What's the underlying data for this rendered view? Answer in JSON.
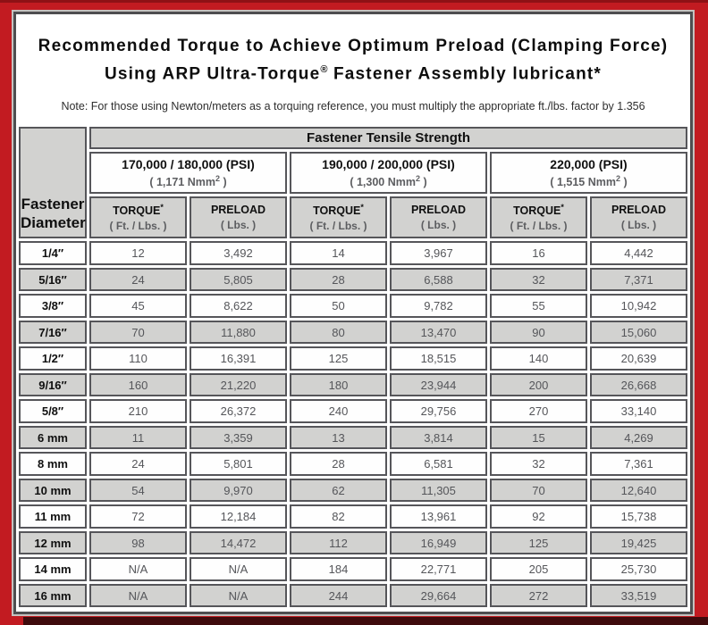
{
  "colors": {
    "frame_red": "#c21b21",
    "bottom_shadow": "#3f0b0d",
    "panel_border": "#4e4e50",
    "cell_border": "#56565a",
    "cell_gray": "#d2d2d0",
    "cell_white": "#fefefe",
    "muted_text": "#5c5d60"
  },
  "title": {
    "line1": "Recommended Torque to Achieve Optimum Preload (Clamping Force)",
    "line2_pre": "Using ARP Ultra-Torque",
    "line2_sup": "®",
    "line2_post": " Fastener Assembly lubricant*"
  },
  "note": "Note: For those using Newton/meters as a torquing reference, you must multiply the appropriate ft./lbs. factor by 1.356",
  "table": {
    "corner_line1": "Fastener",
    "corner_line2": "Diameter",
    "tensile_header": "Fastener Tensile Strength",
    "groups": [
      {
        "psi": "170,000 / 180,000 (PSI)",
        "nmm_pre": "( 1,171 Nmm",
        "nmm_sup": "2",
        "nmm_post": " )"
      },
      {
        "psi": "190,000 / 200,000 (PSI)",
        "nmm_pre": "( 1,300 Nmm",
        "nmm_sup": "2",
        "nmm_post": " )"
      },
      {
        "psi": "220,000 (PSI)",
        "nmm_pre": "( 1,515 Nmm",
        "nmm_sup": "2",
        "nmm_post": " )"
      }
    ],
    "colhead": {
      "torque": {
        "label": "TORQUE",
        "sup": "*",
        "unit": "( Ft. / Lbs. )"
      },
      "preload": {
        "label": "PRELOAD",
        "sup": "",
        "unit": "( Lbs. )"
      }
    },
    "rows": [
      {
        "label": "1/4″",
        "values": [
          "12",
          "3,492",
          "14",
          "3,967",
          "16",
          "4,442"
        ]
      },
      {
        "label": "5/16″",
        "values": [
          "24",
          "5,805",
          "28",
          "6,588",
          "32",
          "7,371"
        ]
      },
      {
        "label": "3/8″",
        "values": [
          "45",
          "8,622",
          "50",
          "9,782",
          "55",
          "10,942"
        ]
      },
      {
        "label": "7/16″",
        "values": [
          "70",
          "11,880",
          "80",
          "13,470",
          "90",
          "15,060"
        ]
      },
      {
        "label": "1/2″",
        "values": [
          "110",
          "16,391",
          "125",
          "18,515",
          "140",
          "20,639"
        ]
      },
      {
        "label": "9/16″",
        "values": [
          "160",
          "21,220",
          "180",
          "23,944",
          "200",
          "26,668"
        ]
      },
      {
        "label": "5/8″",
        "values": [
          "210",
          "26,372",
          "240",
          "29,756",
          "270",
          "33,140"
        ]
      },
      {
        "label": "6 mm",
        "values": [
          "11",
          "3,359",
          "13",
          "3,814",
          "15",
          "4,269"
        ]
      },
      {
        "label": "8 mm",
        "values": [
          "24",
          "5,801",
          "28",
          "6,581",
          "32",
          "7,361"
        ]
      },
      {
        "label": "10 mm",
        "values": [
          "54",
          "9,970",
          "62",
          "11,305",
          "70",
          "12,640"
        ]
      },
      {
        "label": "11 mm",
        "values": [
          "72",
          "12,184",
          "82",
          "13,961",
          "92",
          "15,738"
        ]
      },
      {
        "label": "12 mm",
        "values": [
          "98",
          "14,472",
          "112",
          "16,949",
          "125",
          "19,425"
        ]
      },
      {
        "label": "14 mm",
        "values": [
          "N/A",
          "N/A",
          "184",
          "22,771",
          "205",
          "25,730"
        ]
      },
      {
        "label": "16 mm",
        "values": [
          "N/A",
          "N/A",
          "244",
          "29,664",
          "272",
          "33,519"
        ]
      }
    ]
  }
}
